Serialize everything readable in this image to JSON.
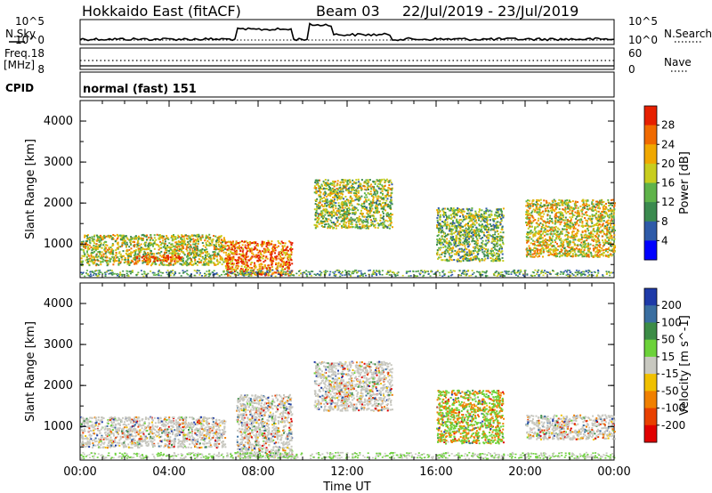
{
  "header": {
    "title": "Hokkaido East (fitACF)",
    "beam": "Beam 03",
    "date_range": "22/Jul/2019 - 23/Jul/2019"
  },
  "summary": {
    "nsky_label": "N.Sky",
    "nsearch_label": "N.Search",
    "freq_label_1": "Freq.",
    "freq_label_2": "[MHz]",
    "nave_label": "Nave",
    "cpid_label": "CPID",
    "cpid_value": "normal (fast) 151",
    "noise_ticks_left": [
      "10^5",
      "10^0"
    ],
    "noise_ticks_right": [
      "10^5",
      "10^0"
    ],
    "freq_ticks": [
      "18",
      "8"
    ],
    "nave_ticks": [
      "60",
      "0"
    ]
  },
  "chart_data": [
    {
      "type": "heatmap",
      "name_panel": "power",
      "xlabel": "",
      "ylabel": "Slant Range [km]",
      "xlim": [
        0,
        24
      ],
      "ylim": [
        180,
        4500
      ],
      "yticks": [
        "1000",
        "2000",
        "3000",
        "4000"
      ],
      "colorbar_label": "Power [dB]",
      "colorbar_ticks": [
        "4",
        "8",
        "12",
        "16",
        "20",
        "24",
        "28"
      ],
      "colorbar_colors": [
        "#0000ff",
        "#2e5aa8",
        "#3b8a4f",
        "#5fb34a",
        "#c8cd1e",
        "#f0a800",
        "#f06a00",
        "#e62000"
      ],
      "scatter_regions": [
        {
          "t0": 0.0,
          "t1": 6.5,
          "r0": 500,
          "r1": 1250,
          "level": 0.55
        },
        {
          "t0": 2.5,
          "t1": 4.5,
          "r0": 600,
          "r1": 750,
          "level": 0.9
        },
        {
          "t0": 6.5,
          "t1": 9.5,
          "r0": 250,
          "r1": 1100,
          "level": 0.8
        },
        {
          "t0": 10.5,
          "t1": 14.0,
          "r0": 1400,
          "r1": 2600,
          "level": 0.5
        },
        {
          "t0": 16.0,
          "t1": 19.0,
          "r0": 600,
          "r1": 1900,
          "level": 0.45
        },
        {
          "t0": 20.0,
          "t1": 24.0,
          "r0": 700,
          "r1": 2100,
          "level": 0.6
        }
      ]
    },
    {
      "type": "heatmap",
      "name_panel": "velocity",
      "xlabel": "Time UT",
      "ylabel": "Slant Range [km]",
      "xlim": [
        0,
        24
      ],
      "ylim": [
        180,
        4500
      ],
      "xticks": [
        "00:00",
        "04:00",
        "08:00",
        "12:00",
        "16:00",
        "20:00",
        "00:00"
      ],
      "yticks": [
        "1000",
        "2000",
        "3000",
        "4000"
      ],
      "colorbar_label": "Velocity [m s^-1]",
      "colorbar_ticks": [
        "200",
        "100",
        "50",
        "15",
        "-15",
        "-50",
        "-100",
        "-200"
      ],
      "colorbar_colors": [
        "#1e3aa8",
        "#3a6ea0",
        "#3c8c46",
        "#6cd23a",
        "#c8c8c0",
        "#f0c000",
        "#f08000",
        "#e84000",
        "#e00000"
      ],
      "scatter_regions": [
        {
          "t0": 0.0,
          "t1": 6.5,
          "r0": 500,
          "r1": 1250,
          "level": 0.45
        },
        {
          "t0": 7.0,
          "t1": 9.5,
          "r0": 250,
          "r1": 1800,
          "level": 0.5
        },
        {
          "t0": 10.5,
          "t1": 14.0,
          "r0": 1400,
          "r1": 2600,
          "level": 0.45
        },
        {
          "t0": 16.0,
          "t1": 19.0,
          "r0": 600,
          "r1": 1900,
          "level": 0.85
        },
        {
          "t0": 20.0,
          "t1": 24.0,
          "r0": 700,
          "r1": 1300,
          "level": 0.45
        }
      ]
    }
  ]
}
